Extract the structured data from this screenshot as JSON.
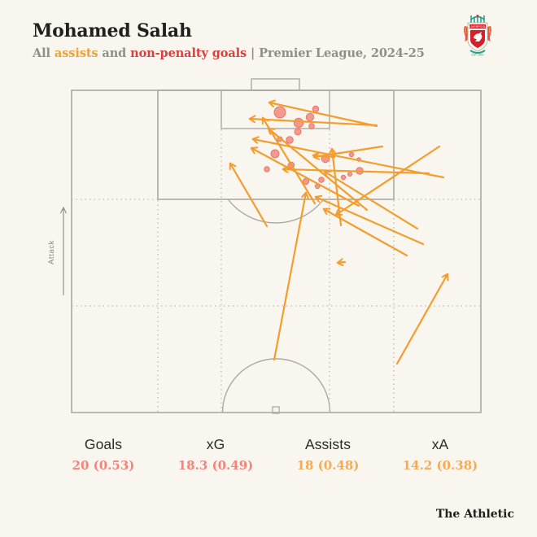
{
  "header": {
    "title": "Mohamed Salah",
    "subtitle_parts": [
      {
        "text": "All ",
        "color": "#908e86"
      },
      {
        "text": "assists",
        "color": "#f0a02f"
      },
      {
        "text": " and ",
        "color": "#908e86"
      },
      {
        "text": "non-penalty goals",
        "color": "#e03c3c"
      },
      {
        "text": " | Premier League, 2024-25",
        "color": "#908e86"
      }
    ]
  },
  "badge": {
    "name": "Liverpool FC crest",
    "icon": "liverpool-crest"
  },
  "pitch": {
    "attack_label": "Attack",
    "line_color": "#aba9a0",
    "dotted_color": "#bcbab0"
  },
  "colors": {
    "assist_arrow": "#f49d2f",
    "goal_dot_fill": "#f28c82",
    "goal_dot_stroke": "#e9756b"
  },
  "chart_data": {
    "type": "scatter",
    "title": "Mohamed Salah — all assists and non-penalty goals, Premier League 2024-25",
    "units": "pixel coordinates on half-pitch, attacking upward; goal at top",
    "series": [
      {
        "name": "Non-penalty goals",
        "marker": "circle (radius ~ xG)",
        "points_xyr": [
          [
            344,
            138,
            7
          ],
          [
            388,
            134,
            3.7
          ],
          [
            367,
            151,
            5.7
          ],
          [
            381,
            144,
            4.7
          ],
          [
            383,
            155,
            3.3
          ],
          [
            366,
            162,
            4
          ],
          [
            344,
            171,
            3
          ],
          [
            356,
            172,
            4.3
          ],
          [
            338,
            189,
            5
          ],
          [
            328,
            208,
            3.3
          ],
          [
            358,
            203,
            3.7
          ],
          [
            400,
            195,
            4.7
          ],
          [
            432,
            190,
            2.7
          ],
          [
            441,
            196,
            2.3
          ],
          [
            442,
            210,
            4.3
          ],
          [
            422,
            218,
            2.7
          ],
          [
            430,
            214,
            2.5
          ],
          [
            395,
            221,
            3.3
          ],
          [
            376,
            223,
            3.7
          ],
          [
            390,
            229,
            2.7
          ]
        ]
      },
      {
        "name": "Assists",
        "marker": "arrow (pass start to pass end)",
        "arrows_x1y1x2y2": [
          [
            463,
            155,
            331,
            126
          ],
          [
            463,
            154,
            307,
            146
          ],
          [
            451,
            258,
            330,
            158
          ],
          [
            387,
            250,
            323,
            145
          ],
          [
            545,
            218,
            311,
            171
          ],
          [
            441,
            253,
            309,
            182
          ],
          [
            527,
            213,
            348,
            208
          ],
          [
            411,
            193,
            385,
            191
          ],
          [
            470,
            180,
            386,
            193
          ],
          [
            328,
            278,
            283,
            201
          ],
          [
            337,
            442,
            376,
            237
          ],
          [
            488,
            447,
            550,
            337
          ],
          [
            424,
            322,
            415,
            323
          ],
          [
            513,
            281,
            399,
            211
          ],
          [
            540,
            180,
            413,
            264
          ],
          [
            520,
            300,
            388,
            242
          ],
          [
            500,
            314,
            398,
            257
          ],
          [
            419,
            277,
            408,
            183
          ]
        ]
      }
    ]
  },
  "stats": [
    {
      "label": "Goals",
      "value": "20 (0.53)",
      "value_color": "#f3837b"
    },
    {
      "label": "xG",
      "value": "18.3 (0.49)",
      "value_color": "#f3837b"
    },
    {
      "label": "Assists",
      "value": "18 (0.48)",
      "value_color": "#f5ab56"
    },
    {
      "label": "xA",
      "value": "14.2 (0.38)",
      "value_color": "#f5ab56"
    }
  ],
  "footer": {
    "brand": "The Athletic"
  }
}
